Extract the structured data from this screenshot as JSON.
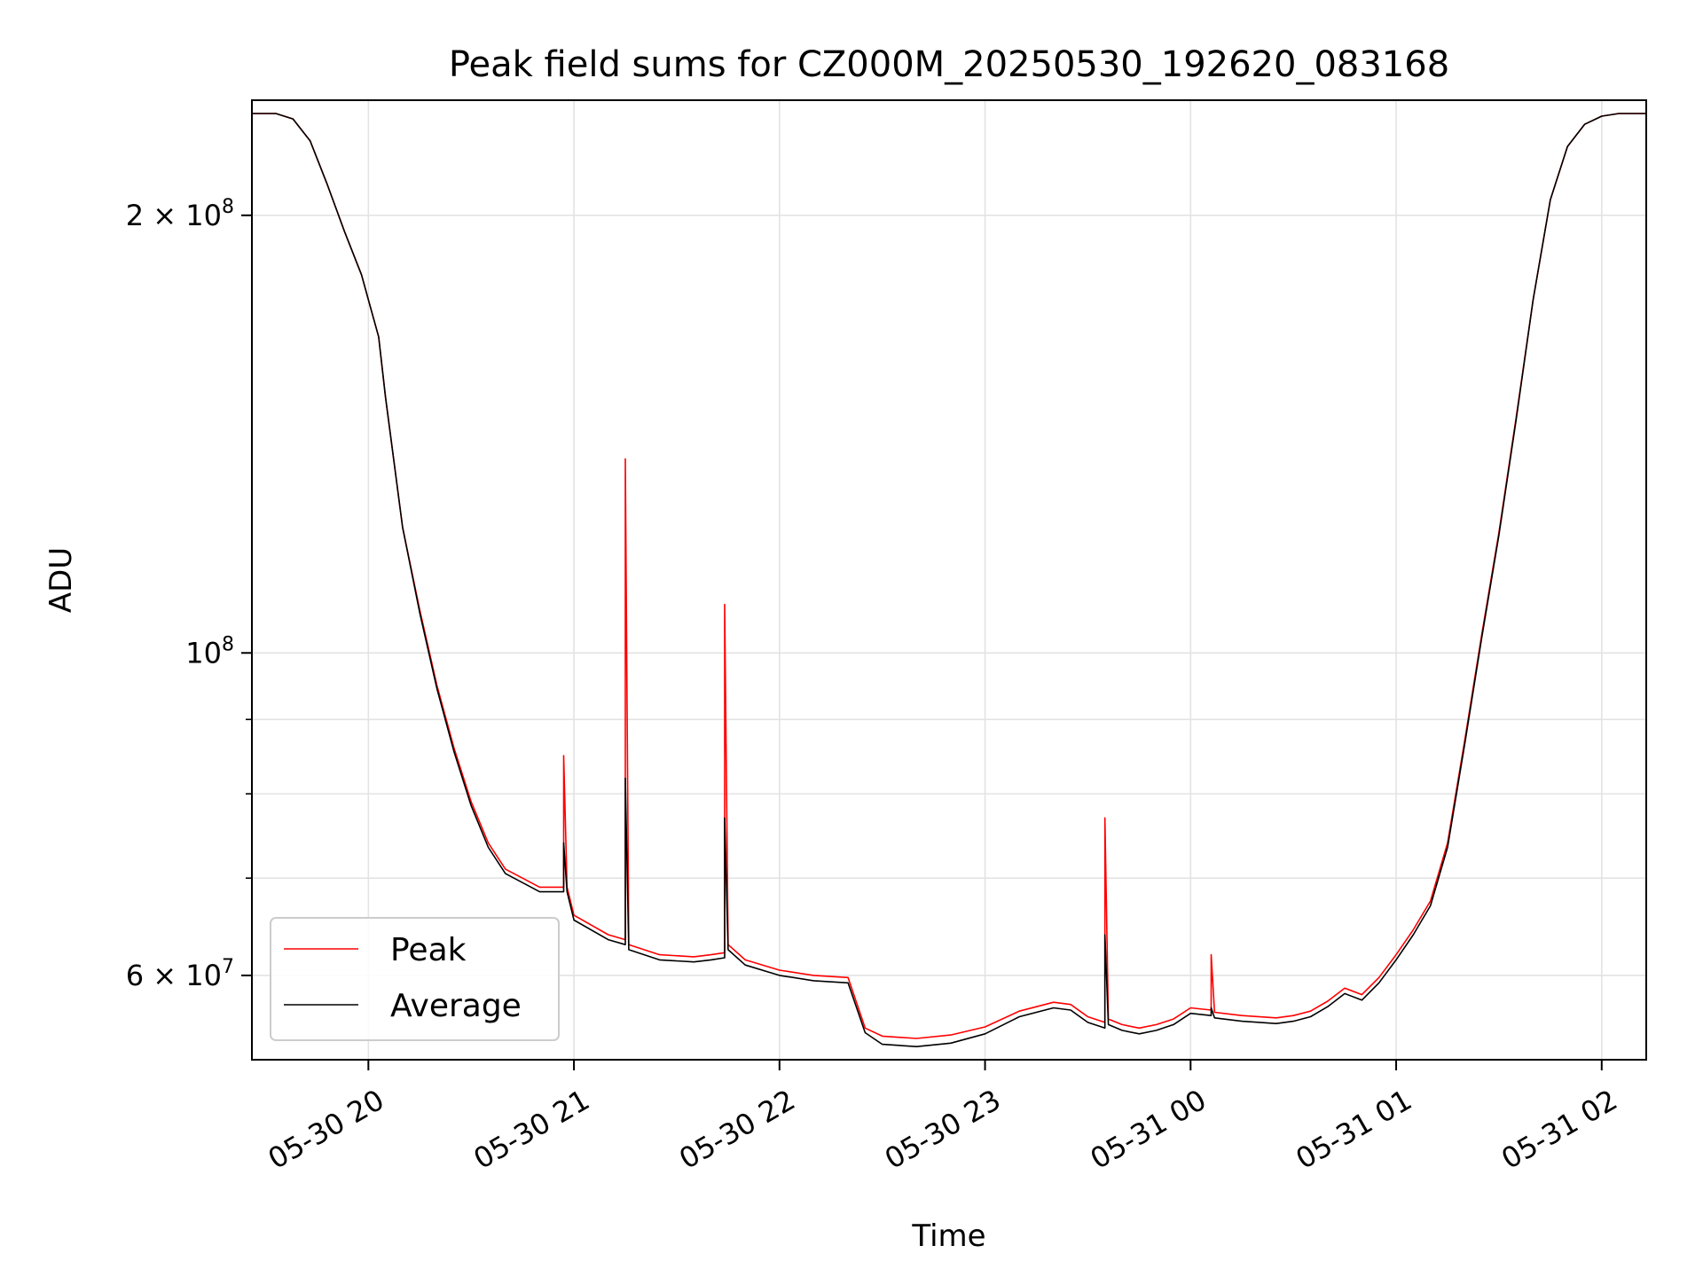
{
  "chart_data": {
    "type": "line",
    "title": "Peak field sums for CZ000M_20250530_192620_083168",
    "xlabel": "Time",
    "ylabel": "ADU",
    "x_type": "datetime",
    "xlim": [
      "2025-05-30 19:26",
      "2025-05-31 02:13"
    ],
    "y_scale": "log",
    "ylim": [
      52500000,
      240000000
    ],
    "x_ticks": [
      "2025-05-30 20:00",
      "2025-05-30 21:00",
      "2025-05-30 22:00",
      "2025-05-30 23:00",
      "2025-05-31 00:00",
      "2025-05-31 01:00",
      "2025-05-31 02:00"
    ],
    "x_tick_labels": [
      "05-30 20",
      "05-30 21",
      "05-30 22",
      "05-30 23",
      "05-31 00",
      "05-31 01",
      "05-31 02"
    ],
    "y_ticks_major": [
      200000000,
      100000000,
      60000000
    ],
    "y_tick_labels": [
      {
        "coef": "2",
        "exp": "8"
      },
      {
        "coef": "",
        "exp": "8"
      },
      {
        "coef": "6",
        "exp": "7"
      }
    ],
    "y_ticks_minor": [
      70000000,
      80000000,
      90000000
    ],
    "grid": true,
    "legend_position": "lower-left",
    "colors": {
      "peak": "#ff0000",
      "average": "#000000",
      "grid": "#e3e3e3"
    },
    "series": [
      {
        "name": "Peak",
        "color": "#ff0000",
        "x": [
          "2025-05-30 19:26",
          "2025-05-30 19:33",
          "2025-05-30 19:38",
          "2025-05-30 19:43",
          "2025-05-30 19:48",
          "2025-05-30 19:53",
          "2025-05-30 19:58",
          "2025-05-30 20:00",
          "2025-05-30 20:03",
          "2025-05-30 20:05",
          "2025-05-30 20:07",
          "2025-05-30 20:10",
          "2025-05-30 20:15",
          "2025-05-30 20:20",
          "2025-05-30 20:25",
          "2025-05-30 20:30",
          "2025-05-30 20:35",
          "2025-05-30 20:40",
          "2025-05-30 20:45",
          "2025-05-30 20:50",
          "2025-05-30 20:55",
          "2025-05-30 20:57",
          "2025-05-30 20:57",
          "2025-05-30 20:58",
          "2025-05-30 21:00",
          "2025-05-30 21:10",
          "2025-05-30 21:15",
          "2025-05-30 21:15",
          "2025-05-30 21:16",
          "2025-05-30 21:25",
          "2025-05-30 21:35",
          "2025-05-30 21:40",
          "2025-05-30 21:44",
          "2025-05-30 21:44",
          "2025-05-30 21:45",
          "2025-05-30 21:50",
          "2025-05-30 22:00",
          "2025-05-30 22:10",
          "2025-05-30 22:20",
          "2025-05-30 22:25",
          "2025-05-30 22:30",
          "2025-05-30 22:40",
          "2025-05-30 22:50",
          "2025-05-30 23:00",
          "2025-05-30 23:10",
          "2025-05-30 23:20",
          "2025-05-30 23:25",
          "2025-05-30 23:30",
          "2025-05-30 23:35",
          "2025-05-30 23:35",
          "2025-05-30 23:36",
          "2025-05-30 23:40",
          "2025-05-30 23:45",
          "2025-05-30 23:50",
          "2025-05-30 23:55",
          "2025-05-31 00:00",
          "2025-05-31 00:06",
          "2025-05-31 00:06",
          "2025-05-31 00:07",
          "2025-05-31 00:15",
          "2025-05-31 00:25",
          "2025-05-31 00:30",
          "2025-05-31 00:35",
          "2025-05-31 00:40",
          "2025-05-31 00:45",
          "2025-05-31 00:50",
          "2025-05-31 00:55",
          "2025-05-31 01:00",
          "2025-05-31 01:05",
          "2025-05-31 01:10",
          "2025-05-31 01:15",
          "2025-05-31 01:20",
          "2025-05-31 01:25",
          "2025-05-31 01:30",
          "2025-05-31 01:35",
          "2025-05-31 01:40",
          "2025-05-31 01:45",
          "2025-05-31 01:50",
          "2025-05-31 01:55",
          "2025-05-31 02:00",
          "2025-05-31 02:05",
          "2025-05-31 02:13"
        ],
        "y": [
          235000000,
          235000000,
          233000000,
          225000000,
          210000000,
          195000000,
          182000000,
          175000000,
          165000000,
          150000000,
          138000000,
          122000000,
          107000000,
          95000000,
          86000000,
          79000000,
          74000000,
          71000000,
          70000000,
          69000000,
          69000000,
          69000000,
          85000000,
          69000000,
          66000000,
          64000000,
          63500000,
          136000000,
          63000000,
          62000000,
          61800000,
          62000000,
          62200000,
          108000000,
          63000000,
          61500000,
          60500000,
          60000000,
          59800000,
          55200000,
          54500000,
          54300000,
          54600000,
          55300000,
          56700000,
          57500000,
          57300000,
          56200000,
          55700000,
          77000000,
          56000000,
          55500000,
          55200000,
          55500000,
          56000000,
          57000000,
          56800000,
          62000000,
          56600000,
          56300000,
          56100000,
          56300000,
          56700000,
          57600000,
          58800000,
          58200000,
          59800000,
          62000000,
          64500000,
          67500000,
          74000000,
          87000000,
          103000000,
          121000000,
          145000000,
          175000000,
          205000000,
          223000000,
          231000000,
          234000000,
          235000000,
          235000000
        ]
      },
      {
        "name": "Average",
        "color": "#000000",
        "x": [
          "2025-05-30 19:26",
          "2025-05-30 19:33",
          "2025-05-30 19:38",
          "2025-05-30 19:43",
          "2025-05-30 19:48",
          "2025-05-30 19:53",
          "2025-05-30 19:58",
          "2025-05-30 20:00",
          "2025-05-30 20:03",
          "2025-05-30 20:05",
          "2025-05-30 20:07",
          "2025-05-30 20:10",
          "2025-05-30 20:15",
          "2025-05-30 20:20",
          "2025-05-30 20:25",
          "2025-05-30 20:30",
          "2025-05-30 20:35",
          "2025-05-30 20:40",
          "2025-05-30 20:45",
          "2025-05-30 20:50",
          "2025-05-30 20:55",
          "2025-05-30 20:57",
          "2025-05-30 20:57",
          "2025-05-30 20:58",
          "2025-05-30 21:00",
          "2025-05-30 21:10",
          "2025-05-30 21:15",
          "2025-05-30 21:15",
          "2025-05-30 21:16",
          "2025-05-30 21:25",
          "2025-05-30 21:35",
          "2025-05-30 21:40",
          "2025-05-30 21:44",
          "2025-05-30 21:44",
          "2025-05-30 21:45",
          "2025-05-30 21:50",
          "2025-05-30 22:00",
          "2025-05-30 22:10",
          "2025-05-30 22:20",
          "2025-05-30 22:25",
          "2025-05-30 22:30",
          "2025-05-30 22:40",
          "2025-05-30 22:50",
          "2025-05-30 23:00",
          "2025-05-30 23:10",
          "2025-05-30 23:20",
          "2025-05-30 23:25",
          "2025-05-30 23:30",
          "2025-05-30 23:35",
          "2025-05-30 23:35",
          "2025-05-30 23:36",
          "2025-05-30 23:40",
          "2025-05-30 23:45",
          "2025-05-30 23:50",
          "2025-05-30 23:55",
          "2025-05-31 00:00",
          "2025-05-31 00:06",
          "2025-05-31 00:06",
          "2025-05-31 00:07",
          "2025-05-31 00:15",
          "2025-05-31 00:25",
          "2025-05-31 00:30",
          "2025-05-31 00:35",
          "2025-05-31 00:40",
          "2025-05-31 00:45",
          "2025-05-31 00:50",
          "2025-05-31 00:55",
          "2025-05-31 01:00",
          "2025-05-31 01:05",
          "2025-05-31 01:10",
          "2025-05-31 01:15",
          "2025-05-31 01:20",
          "2025-05-31 01:25",
          "2025-05-31 01:30",
          "2025-05-31 01:35",
          "2025-05-31 01:40",
          "2025-05-31 01:45",
          "2025-05-31 01:50",
          "2025-05-31 01:55",
          "2025-05-31 02:00",
          "2025-05-31 02:05",
          "2025-05-31 02:13"
        ],
        "y": [
          235000000,
          235000000,
          233000000,
          225000000,
          210000000,
          195000000,
          182000000,
          175000000,
          165000000,
          150000000,
          138000000,
          122000000,
          106500000,
          94500000,
          85500000,
          78500000,
          73500000,
          70500000,
          69500000,
          68500000,
          68500000,
          68500000,
          74000000,
          68500000,
          65500000,
          63500000,
          63000000,
          82000000,
          62500000,
          61500000,
          61300000,
          61500000,
          61700000,
          77000000,
          62500000,
          61000000,
          60000000,
          59500000,
          59300000,
          54800000,
          53800000,
          53600000,
          53900000,
          54700000,
          56200000,
          57000000,
          56800000,
          55700000,
          55200000,
          64000000,
          55500000,
          55000000,
          54700000,
          55000000,
          55500000,
          56500000,
          56300000,
          57000000,
          56100000,
          55800000,
          55600000,
          55800000,
          56200000,
          57100000,
          58300000,
          57700000,
          59300000,
          61500000,
          64000000,
          67000000,
          73500000,
          86500000,
          102500000,
          120500000,
          144500000,
          175000000,
          205000000,
          223000000,
          231000000,
          234000000,
          235000000,
          235000000
        ]
      }
    ]
  }
}
